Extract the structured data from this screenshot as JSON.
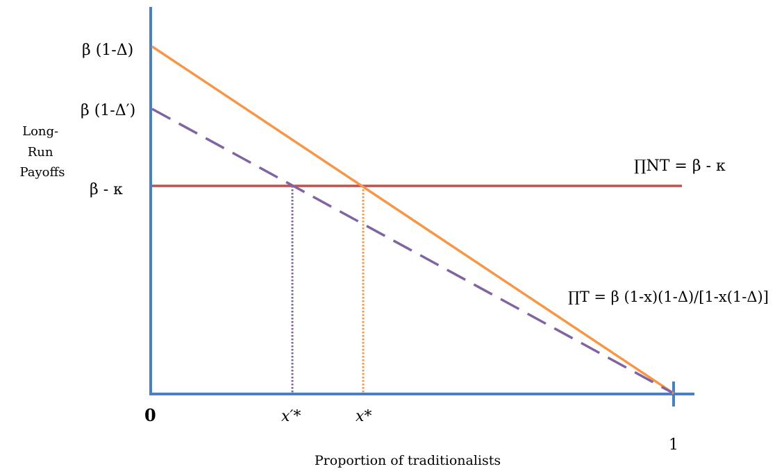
{
  "y_axis": {
    "title_lines": [
      "Long-",
      "Run",
      "Payoffs"
    ],
    "ticks": {
      "high": "β (1-Δ)",
      "mid": "β (1-Δ′)",
      "low": "β - κ"
    }
  },
  "x_axis": {
    "title": "Proportion of traditionalists",
    "origin": "0",
    "end": "1",
    "x_prime_star": "x′*",
    "x_star": "x*"
  },
  "curves": {
    "nt_label": "∏NT = β - κ",
    "t_label": "∏T = β (1-x)(1-Δ)/[1-x(1-Δ)]"
  },
  "colors": {
    "axis": "#4a7fc1",
    "orange": "#f79646",
    "purple": "#8064a2",
    "red": "#c0504d"
  }
}
